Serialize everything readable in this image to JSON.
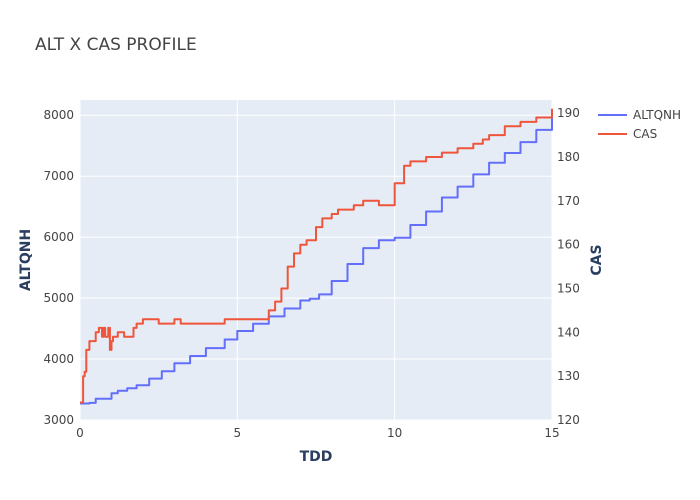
{
  "chart_data": {
    "type": "line",
    "title": "ALT X CAS PROFILE",
    "xlabel": "TDD",
    "ylabel_left": "ALTQNH",
    "ylabel_right": "CAS",
    "xlim": [
      0,
      15
    ],
    "ylim_left": [
      3000,
      8250
    ],
    "ylim_right": [
      120,
      193
    ],
    "x_ticks": [
      0,
      5,
      10,
      15
    ],
    "y_left_ticks": [
      3000,
      4000,
      5000,
      6000,
      7000,
      8000
    ],
    "y_right_ticks": [
      120,
      130,
      140,
      150,
      160,
      170,
      180,
      190
    ],
    "grid": true,
    "legend_position": "top-right",
    "background": "#e5ecf6",
    "series": [
      {
        "name": "ALTQNH",
        "axis": "left",
        "color": "#636efa",
        "x": [
          0,
          0.3,
          0.5,
          1.0,
          1.2,
          1.5,
          1.8,
          2.2,
          2.6,
          3.0,
          3.5,
          4.0,
          4.6,
          5.0,
          5.5,
          6.0,
          6.5,
          7.0,
          7.3,
          7.6,
          8.0,
          8.5,
          9.0,
          9.5,
          10.0,
          10.5,
          11.0,
          11.5,
          12.0,
          12.5,
          13.0,
          13.5,
          14.0,
          14.5,
          15.0
        ],
        "values": [
          3270,
          3280,
          3350,
          3440,
          3480,
          3520,
          3570,
          3680,
          3800,
          3930,
          4050,
          4180,
          4320,
          4460,
          4580,
          4700,
          4830,
          4960,
          4990,
          5060,
          5280,
          5560,
          5820,
          5950,
          5990,
          6200,
          6420,
          6650,
          6830,
          7030,
          7220,
          7380,
          7560,
          7760,
          7960
        ]
      },
      {
        "name": "CAS",
        "axis": "right",
        "color": "#ef553b",
        "x": [
          0,
          0.1,
          0.15,
          0.2,
          0.3,
          0.5,
          0.6,
          0.7,
          0.75,
          0.8,
          0.9,
          0.95,
          1.0,
          1.05,
          1.2,
          1.4,
          1.5,
          1.7,
          1.8,
          2.0,
          2.2,
          2.5,
          2.8,
          3.0,
          3.2,
          3.5,
          4.0,
          4.5,
          4.6,
          5.0,
          5.5,
          5.9,
          6.0,
          6.2,
          6.4,
          6.6,
          6.8,
          7.0,
          7.2,
          7.5,
          7.7,
          8.0,
          8.2,
          8.5,
          8.7,
          9.0,
          9.5,
          9.7,
          10.0,
          10.3,
          10.5,
          10.8,
          11.0,
          11.5,
          12.0,
          12.5,
          12.8,
          13.0,
          13.5,
          14.0,
          14.5,
          15.0
        ],
        "values": [
          124,
          130,
          131,
          136,
          138,
          140,
          141,
          139,
          141,
          139,
          141,
          136,
          138,
          139,
          140,
          139,
          139,
          141,
          142,
          143,
          143,
          142,
          142,
          143,
          142,
          142,
          142,
          142,
          143,
          143,
          143,
          143,
          145,
          147,
          150,
          155,
          158,
          160,
          161,
          164,
          166,
          167,
          168,
          168,
          169,
          170,
          169,
          169,
          174,
          178,
          179,
          179,
          180,
          181,
          182,
          183,
          184,
          185,
          187,
          188,
          189,
          191
        ]
      }
    ]
  }
}
